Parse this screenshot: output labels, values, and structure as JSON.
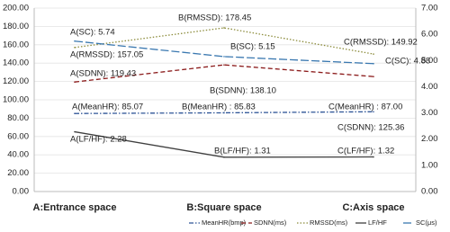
{
  "chart_data": {
    "type": "line",
    "categories": [
      "A:Entrance space",
      "B:Square space",
      "C:Axis space"
    ],
    "ylim": [
      0,
      200
    ],
    "yticks": [
      {
        "value": 0,
        "label": "0.00"
      },
      {
        "value": 20,
        "label": "20.00"
      },
      {
        "value": 40,
        "label": "40.00"
      },
      {
        "value": 60,
        "label": "60.00"
      },
      {
        "value": 80,
        "label": "80.00"
      },
      {
        "value": 100,
        "label": "100.00"
      },
      {
        "value": 120,
        "label": "120.00"
      },
      {
        "value": 140,
        "label": "140.00"
      },
      {
        "value": 160,
        "label": "160.00"
      },
      {
        "value": 180,
        "label": "180.00"
      },
      {
        "value": 200,
        "label": "200.00"
      }
    ],
    "y2lim": [
      0,
      7
    ],
    "y2ticks": [
      {
        "value": 0,
        "label": "0.00"
      },
      {
        "value": 1,
        "label": "1.00"
      },
      {
        "value": 2,
        "label": "2.00"
      },
      {
        "value": 3,
        "label": "3.00"
      },
      {
        "value": 4,
        "label": "4.00"
      },
      {
        "value": 5,
        "label": "5.00"
      },
      {
        "value": 6,
        "label": "6.00"
      },
      {
        "value": 7,
        "label": "7.00"
      }
    ],
    "grid": true,
    "legend": "bottom-right",
    "series": [
      {
        "name": "MeanHR(bmp)",
        "color": "#2f5597",
        "dash": "dashdot",
        "values": [
          85.07,
          85.83,
          87.0
        ],
        "value_labels": [
          "A(MeanHR): 85.07",
          "B(MeanHR) : 85.83",
          "C(MeanHR) : 87.00"
        ]
      },
      {
        "name": "SDNN(ms)",
        "color": "#8b1a1a",
        "dash": "dash",
        "values": [
          119.43,
          138.1,
          125.36
        ],
        "value_labels": [
          "A(SDNN): 119.43",
          "B(SDNN): 138.10",
          "C(SDNN): 125.36"
        ]
      },
      {
        "name": "RMSSD(ms)",
        "color": "#8c8c3c",
        "dash": "dot",
        "values": [
          157.05,
          178.45,
          149.92
        ],
        "value_labels": [
          "A(RMSSD): 157.05",
          "B(RMSSD): 178.45",
          "C(RMSSD): 149.92"
        ]
      },
      {
        "name": "LF/HF",
        "color": "#404040",
        "dash": "solid",
        "axis": "y2",
        "values": [
          2.28,
          1.31,
          1.32
        ],
        "value_labels": [
          "A(LF/HF): 2.28",
          "B(LF/HF): 1.31",
          "C(LF/HF): 1.32"
        ]
      },
      {
        "name": "SC(μs)",
        "color": "#3a78b0",
        "dash": "longdash",
        "axis": "y2",
        "values": [
          5.74,
          5.15,
          4.88
        ],
        "value_labels": [
          "A(SC): 5.74",
          "B(SC): 5.15",
          "C(SC): 4.88"
        ]
      }
    ]
  }
}
